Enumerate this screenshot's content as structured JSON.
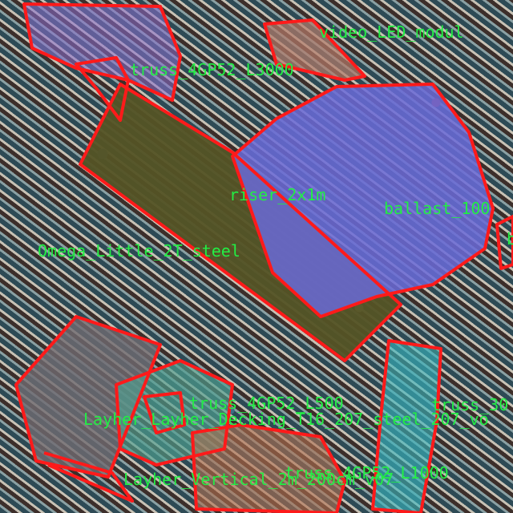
{
  "labels": [
    "video_LED_modul",
    "truss_4GP52_L3000",
    "riser_2x1m",
    "ballast_100",
    "b",
    "Omega_Little_2T_steel",
    "truss_4GP52_L500",
    "truss_30",
    "Layher_Layher_Decking_T16_207_steel_207_vo",
    "Layher_Vertical_2m_200cm_v07",
    "truss_4GP52_L1000"
  ],
  "colors": {
    "outline": "#ff1a1a",
    "label": "#22ee44",
    "riser": "#6a6ad8",
    "floor": "#545325"
  }
}
